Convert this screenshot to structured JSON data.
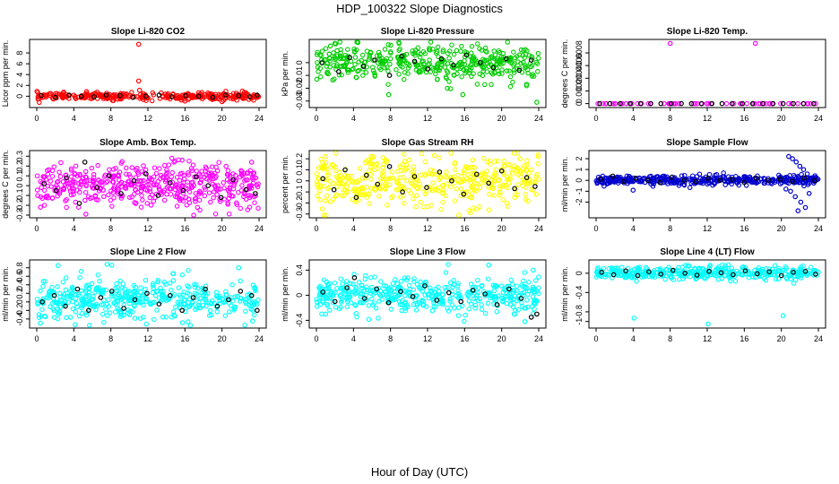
{
  "title": "HDP_100322  Slope Diagnostics",
  "xlabel": "Hour of Day (UTC)",
  "chart_data": [
    {
      "type": "scatter",
      "title": "Slope Li-820 CO2",
      "ylabel": "Licor ppm per min.",
      "xlim": [
        0,
        24
      ],
      "ylim": [
        -1.6,
        10
      ],
      "xticks": [
        0,
        4,
        8,
        12,
        16,
        20,
        24
      ],
      "yticks": [
        0,
        2,
        4,
        6,
        8
      ],
      "color": "#ff0000",
      "band": [
        -0.6,
        0.6
      ],
      "n_background": 300,
      "series": [
        {
          "color": "#ff0000",
          "x": [
            11.0,
            11.0,
            11.1,
            15.6,
            16.0,
            22.4,
            20.0,
            8.2
          ],
          "y": [
            9.6,
            2.8,
            1.1,
            -0.7,
            -0.9,
            0.7,
            -1.0,
            -0.8
          ]
        },
        {
          "color": "#000000",
          "x": [
            0.5,
            2.0,
            3.5,
            4.8,
            6.2,
            7.5,
            9.0,
            10.4,
            11.8,
            13.2,
            14.6,
            16.1,
            17.5,
            19.0,
            20.4,
            21.8,
            23.0,
            23.8
          ],
          "y": [
            0.1,
            -0.2,
            0.2,
            0.0,
            -0.1,
            0.2,
            0.1,
            -0.2,
            0.0,
            0.2,
            -0.1,
            0.1,
            0.0,
            -0.2,
            0.2,
            0.1,
            -0.1,
            0.2
          ]
        }
      ]
    },
    {
      "type": "scatter",
      "title": "Slope Li-820 Pressure",
      "ylabel": "kPa per min.",
      "xlim": [
        0,
        24
      ],
      "ylim": [
        -0.033,
        0.016
      ],
      "xticks": [
        0,
        4,
        8,
        12,
        16,
        20,
        24
      ],
      "yticks": [
        -0.03,
        -0.02,
        -0.01,
        0.0
      ],
      "color": "#00cd00",
      "band": [
        -0.013,
        0.012
      ],
      "n_background": 420,
      "series": [
        {
          "color": "#00cd00",
          "x": [
            2.0,
            7.8,
            15.8,
            23.8,
            1.5,
            22.7
          ],
          "y": [
            0.015,
            -0.025,
            -0.025,
            -0.031,
            0.013,
            -0.017
          ]
        },
        {
          "color": "#000000",
          "x": [
            0.6,
            2.4,
            3.6,
            5.1,
            6.3,
            7.9,
            9.2,
            10.6,
            12.0,
            13.5,
            14.8,
            16.2,
            17.7,
            19.1,
            20.5,
            21.9,
            23.2
          ],
          "y": [
            0.0,
            -0.007,
            0.004,
            -0.003,
            0.002,
            -0.01,
            0.005,
            0.001,
            -0.005,
            0.003,
            -0.002,
            0.006,
            0.0,
            -0.004,
            0.003,
            -0.006,
            0.002
          ]
        }
      ]
    },
    {
      "type": "scatter",
      "title": "Slope Li-820 Temp.",
      "ylabel": "degrees C per min.",
      "xlim": [
        0,
        24
      ],
      "ylim": [
        -2e-05,
        0.00097
      ],
      "xticks": [
        0,
        4,
        8,
        12,
        16,
        20,
        24
      ],
      "yticks": [
        0.0,
        0.0002,
        0.0004,
        0.0006,
        0.0008
      ],
      "color": "#ff00ff",
      "band": [
        0.0,
        0.0
      ],
      "n_background": 70,
      "series": [
        {
          "color": "#ff00ff",
          "x": [
            8.0,
            17.2
          ],
          "y": [
            0.00095,
            0.00095
          ]
        },
        {
          "color": "#000000",
          "x": [
            0.4,
            1.5,
            2.6,
            3.7,
            4.8,
            5.9,
            7.0,
            8.1,
            9.2,
            10.3,
            11.4,
            12.5,
            13.6,
            14.7,
            15.8,
            16.9,
            18.0,
            19.1,
            20.2,
            21.3,
            22.4,
            23.5
          ],
          "y": [
            0,
            0,
            0,
            0,
            0,
            0,
            0,
            0,
            0,
            0,
            0,
            0,
            0,
            0,
            0,
            0,
            0,
            0,
            0,
            0,
            0,
            0
          ]
        }
      ]
    },
    {
      "type": "scatter",
      "title": "Slope Amb. Box Temp.",
      "ylabel": "degrees C per min.",
      "xlim": [
        0,
        24
      ],
      "ylim": [
        -0.3,
        0.33
      ],
      "xticks": [
        0,
        4,
        8,
        12,
        16,
        20,
        24
      ],
      "yticks": [
        -0.3,
        -0.2,
        -0.1,
        0.0,
        0.1,
        0.2,
        0.3
      ],
      "color": "#ff00ff",
      "band": [
        -0.2,
        0.2
      ],
      "n_background": 480,
      "series": [
        {
          "color": "#ff00ff",
          "x": [
            5.3,
            15.7,
            0.4,
            23.2
          ],
          "y": [
            -0.29,
            0.26,
            -0.22,
            0.24
          ]
        },
        {
          "color": "#000000",
          "x": [
            0.8,
            2.1,
            3.2,
            4.6,
            5.2,
            6.5,
            7.8,
            9.1,
            10.5,
            11.8,
            13.1,
            14.4,
            15.8,
            17.2,
            18.5,
            19.9,
            21.2,
            22.6,
            23.6
          ],
          "y": [
            0.02,
            -0.05,
            0.08,
            -0.18,
            0.24,
            -0.02,
            0.1,
            -0.08,
            0.05,
            0.12,
            -0.1,
            0.03,
            -0.05,
            0.09,
            0.0,
            -0.12,
            0.06,
            -0.04,
            -0.08
          ]
        }
      ]
    },
    {
      "type": "scatter",
      "title": "Slope Gas Stream RH",
      "ylabel": "percent per min.",
      "xlim": [
        0,
        24
      ],
      "ylim": [
        -0.31,
        0.25
      ],
      "xticks": [
        0,
        4,
        8,
        12,
        16,
        20,
        24
      ],
      "yticks": [
        -0.3,
        -0.2,
        -0.1,
        0.0,
        0.1,
        0.2
      ],
      "color": "#ffff00",
      "band": [
        -0.2,
        0.2
      ],
      "n_background": 420,
      "series": [
        {
          "color": "#ffff00",
          "x": [
            1.0,
            16.5,
            7.2,
            22.0
          ],
          "y": [
            0.22,
            -0.27,
            0.21,
            0.2
          ]
        },
        {
          "color": "#000000",
          "x": [
            0.7,
            1.9,
            3.1,
            4.3,
            5.4,
            6.6,
            7.9,
            9.3,
            10.6,
            11.9,
            13.3,
            14.6,
            15.9,
            17.3,
            18.6,
            20.0,
            21.4,
            22.7,
            23.6
          ],
          "y": [
            0.02,
            -0.08,
            0.1,
            -0.15,
            0.05,
            -0.03,
            0.13,
            -0.1,
            0.04,
            -0.06,
            0.08,
            0.0,
            -0.12,
            0.06,
            -0.02,
            0.09,
            -0.07,
            0.03,
            -0.05
          ]
        }
      ]
    },
    {
      "type": "scatter",
      "title": "Slope Sample Flow",
      "ylabel": "ml/min per min.",
      "xlim": [
        0,
        24
      ],
      "ylim": [
        -3.2,
        2.5
      ],
      "xticks": [
        0,
        4,
        8,
        12,
        16,
        20,
        24
      ],
      "yticks": [
        -2,
        -1,
        0,
        1,
        2
      ],
      "color": "#0000cd",
      "band": [
        -0.4,
        0.4
      ],
      "n_background": 420,
      "series": [
        {
          "color": "#0000cd",
          "x": [
            20.8,
            21.2,
            21.6,
            22.0,
            22.4,
            22.8,
            21.0,
            21.5,
            22.1,
            22.6,
            20.5,
            21.8,
            23.0,
            4.0
          ],
          "y": [
            2.2,
            2.0,
            1.7,
            1.3,
            1.0,
            0.6,
            -1.0,
            -1.5,
            -2.0,
            -2.5,
            -0.8,
            -2.8,
            -1.2,
            -0.9
          ]
        },
        {
          "color": "#000000",
          "x": [
            0.5,
            1.8,
            3.0,
            4.3,
            5.6,
            6.9,
            8.2,
            9.5,
            10.8,
            12.1,
            13.4,
            14.7,
            16.0,
            17.3,
            18.6,
            19.9,
            21.2,
            22.5,
            23.6
          ],
          "y": [
            0.1,
            0.4,
            -0.1,
            0.2,
            0.0,
            -0.2,
            0.3,
            0.0,
            -0.1,
            0.2,
            0.0,
            0.1,
            -0.2,
            0.2,
            0.0,
            0.1,
            -0.1,
            0.2,
            0.0
          ]
        }
      ]
    },
    {
      "type": "scatter",
      "title": "Slope Line 2 Flow",
      "ylabel": "ml/min per min.",
      "xlim": [
        0,
        24
      ],
      "ylim": [
        -0.55,
        0.92
      ],
      "xticks": [
        0,
        4,
        8,
        12,
        16,
        20,
        24
      ],
      "yticks": [
        -0.4,
        -0.2,
        0.0,
        0.2,
        0.4,
        0.6,
        0.8
      ],
      "color": "#00ffff",
      "band": [
        -0.35,
        0.5
      ],
      "n_background": 440,
      "series": [
        {
          "color": "#00ffff",
          "x": [
            2.3,
            7.6,
            8.1,
            21.8,
            0.4,
            23.3
          ],
          "y": [
            0.85,
            0.88,
            0.86,
            0.8,
            -0.5,
            -0.45
          ]
        },
        {
          "color": "#000000",
          "x": [
            0.6,
            1.9,
            3.1,
            4.4,
            5.6,
            6.9,
            8.1,
            9.4,
            10.6,
            11.9,
            13.2,
            14.4,
            15.7,
            16.9,
            18.2,
            19.5,
            20.7,
            22.0,
            23.2,
            23.8
          ],
          "y": [
            0.0,
            0.15,
            -0.1,
            0.3,
            -0.2,
            0.1,
            0.25,
            -0.15,
            0.05,
            0.2,
            -0.05,
            0.15,
            -0.2,
            0.1,
            0.3,
            -0.1,
            0.05,
            0.25,
            0.15,
            -0.2
          ]
        }
      ]
    },
    {
      "type": "scatter",
      "title": "Slope Line 3 Flow",
      "ylabel": "ml/min per min.",
      "xlim": [
        0,
        24
      ],
      "ylim": [
        -0.48,
        0.52
      ],
      "xticks": [
        0,
        4,
        8,
        12,
        16,
        20,
        24
      ],
      "yticks": [
        -0.4,
        0.0,
        0.4
      ],
      "color": "#00ffff",
      "band": [
        -0.25,
        0.25
      ],
      "n_background": 440,
      "series": [
        {
          "color": "#00ffff",
          "x": [
            18.6,
            1.0,
            22.5,
            23.4
          ],
          "y": [
            0.48,
            -0.3,
            -0.42,
            0.4
          ]
        },
        {
          "color": "#000000",
          "x": [
            0.7,
            2.0,
            3.3,
            4.1,
            5.2,
            6.5,
            7.8,
            9.1,
            10.4,
            11.7,
            13.0,
            14.3,
            15.6,
            16.9,
            18.2,
            19.5,
            20.8,
            22.1,
            23.2,
            23.8
          ],
          "y": [
            0.05,
            -0.1,
            0.12,
            0.28,
            -0.05,
            0.1,
            -0.12,
            0.06,
            -0.02,
            0.15,
            -0.08,
            0.04,
            -0.1,
            0.08,
            0.02,
            -0.15,
            0.1,
            -0.05,
            -0.35,
            -0.3
          ]
        }
      ]
    },
    {
      "type": "scatter",
      "title": "Slope Line 4 (LT) Flow",
      "ylabel": "ml/min per min.",
      "xlim": [
        0,
        24
      ],
      "ylim": [
        -1.08,
        0.22
      ],
      "xticks": [
        0,
        4,
        8,
        12,
        16,
        20,
        24
      ],
      "yticks": [
        -1.0,
        -0.8,
        -0.4,
        0.0
      ],
      "color": "#00ffff",
      "band": [
        -0.12,
        0.13
      ],
      "n_background": 380,
      "series": [
        {
          "color": "#00ffff",
          "x": [
            4.1,
            12.1,
            20.2
          ],
          "y": [
            -0.93,
            -1.05,
            -0.88
          ]
        },
        {
          "color": "#000000",
          "x": [
            0.6,
            1.9,
            3.2,
            4.5,
            5.7,
            7.0,
            8.3,
            9.6,
            10.9,
            12.2,
            13.5,
            14.8,
            16.1,
            17.4,
            18.7,
            20.0,
            21.3,
            22.6,
            23.7
          ],
          "y": [
            0.02,
            -0.03,
            0.05,
            -0.05,
            0.03,
            -0.02,
            0.06,
            0.0,
            -0.04,
            0.04,
            0.01,
            -0.03,
            0.05,
            -0.01,
            0.03,
            -0.05,
            0.02,
            0.04,
            -0.02
          ]
        }
      ]
    }
  ]
}
